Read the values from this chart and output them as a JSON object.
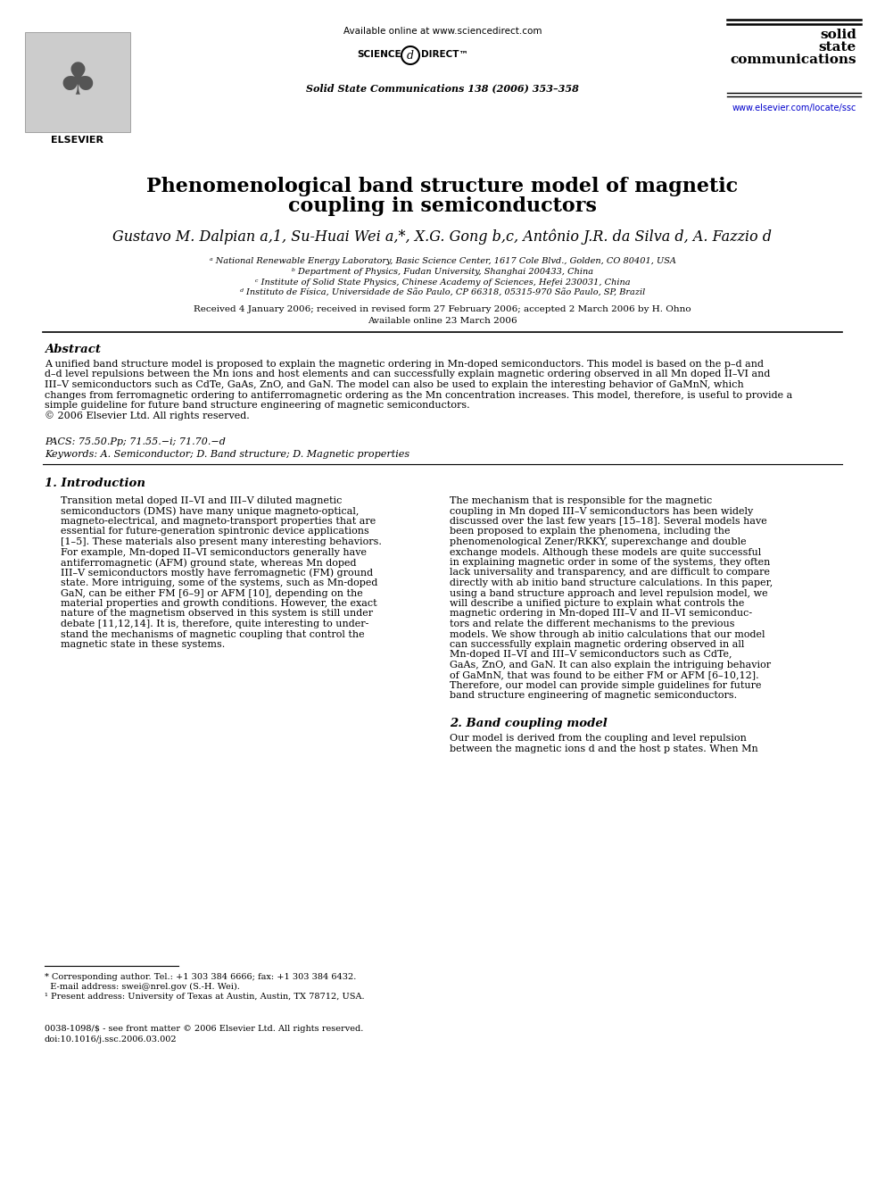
{
  "title_line1": "Phenomenological band structure model of magnetic",
  "title_line2": "coupling in semiconductors",
  "authors_plain": "Gustavo M. Dalpian a,1, Su-Huai Wei a,*, X.G. Gong b,c, Antônio J.R. da Silva d, A. Fazzio d",
  "affil_a": "ᵃ National Renewable Energy Laboratory, Basic Science Center, 1617 Cole Blvd., Golden, CO 80401, USA",
  "affil_b": "ᵇ Department of Physics, Fudan University, Shanghai 200433, China",
  "affil_c": "ᶜ Institute of Solid State Physics, Chinese Academy of Sciences, Hefei 230031, China",
  "affil_d": "ᵈ Instituto de Física, Universidade de São Paulo, CP 66318, 05315-970 São Paulo, SP, Brazil",
  "received": "Received 4 January 2006; received in revised form 27 February 2006; accepted 2 March 2006 by H. Ohno",
  "available": "Available online 23 March 2006",
  "journal": "Solid State Communications 138 (2006) 353–358",
  "sciencedirect_url": "Available online at www.sciencedirect.com",
  "elsevier_url": "www.elsevier.com/locate/ssc",
  "abstract_title": "Abstract",
  "copyright": "© 2006 Elsevier Ltd. All rights reserved.",
  "pacs": "PACS: 75.50.Pp; 71.55.−i; 71.70.−d",
  "keywords": "Keywords: A. Semiconductor; D. Band structure; D. Magnetic properties",
  "section1_title": "1. Introduction",
  "section2_title": "2. Band coupling model",
  "footnote_star_line1": "* Corresponding author. Tel.: +1 303 384 6666; fax: +1 303 384 6432.",
  "footnote_star_line2": "  E-mail address: swei@nrel.gov (S.-H. Wei).",
  "footnote_1": "¹ Present address: University of Texas at Austin, Austin, TX 78712, USA.",
  "footer_issn": "0038-1098/$ - see front matter © 2006 Elsevier Ltd. All rights reserved.",
  "footer_doi": "doi:10.1016/j.ssc.2006.03.002",
  "bg_color": "#ffffff",
  "text_color": "#000000",
  "link_color": "#0000cc",
  "abstract_lines": [
    "A unified band structure model is proposed to explain the magnetic ordering in Mn-doped semiconductors. This model is based on the p–d and",
    "d–d level repulsions between the Mn ions and host elements and can successfully explain magnetic ordering observed in all Mn doped II–VI and",
    "III–V semiconductors such as CdTe, GaAs, ZnO, and GaN. The model can also be used to explain the interesting behavior of GaMnN, which",
    "changes from ferromagnetic ordering to antiferromagnetic ordering as the Mn concentration increases. This model, therefore, is useful to provide a",
    "simple guideline for future band structure engineering of magnetic semiconductors."
  ],
  "left_col_lines": [
    "Transition metal doped II–VI and III–V diluted magnetic",
    "semiconductors (DMS) have many unique magneto-optical,",
    "magneto-electrical, and magneto-transport properties that are",
    "essential for future-generation spintronic device applications",
    "[1–5]. These materials also present many interesting behaviors.",
    "For example, Mn-doped II–VI semiconductors generally have",
    "antiferromagnetic (AFM) ground state, whereas Mn doped",
    "III–V semiconductors mostly have ferromagnetic (FM) ground",
    "state. More intriguing, some of the systems, such as Mn-doped",
    "GaN, can be either FM [6–9] or AFM [10], depending on the",
    "material properties and growth conditions. However, the exact",
    "nature of the magnetism observed in this system is still under",
    "debate [11,12,14]. It is, therefore, quite interesting to under-",
    "stand the mechanisms of magnetic coupling that control the",
    "magnetic state in these systems."
  ],
  "right_col_lines": [
    "The mechanism that is responsible for the magnetic",
    "coupling in Mn doped III–V semiconductors has been widely",
    "discussed over the last few years [15–18]. Several models have",
    "been proposed to explain the phenomena, including the",
    "phenomenological Zener/RKKY, superexchange and double",
    "exchange models. Although these models are quite successful",
    "in explaining magnetic order in some of the systems, they often",
    "lack universality and transparency, and are difficult to compare",
    "directly with ab initio band structure calculations. In this paper,",
    "using a band structure approach and level repulsion model, we",
    "will describe a unified picture to explain what controls the",
    "magnetic ordering in Mn-doped III–V and II–VI semiconduc-",
    "tors and relate the different mechanisms to the previous",
    "models. We show through ab initio calculations that our model",
    "can successfully explain magnetic ordering observed in all",
    "Mn-doped II–VI and III–V semiconductors such as CdTe,",
    "GaAs, ZnO, and GaN. It can also explain the intriguing behavior",
    "of GaMnN, that was found to be either FM or AFM [6–10,12].",
    "Therefore, our model can provide simple guidelines for future",
    "band structure engineering of magnetic semiconductors."
  ],
  "section2_lines": [
    "Our model is derived from the coupling and level repulsion",
    "between the magnetic ions d and the host p states. When Mn"
  ]
}
